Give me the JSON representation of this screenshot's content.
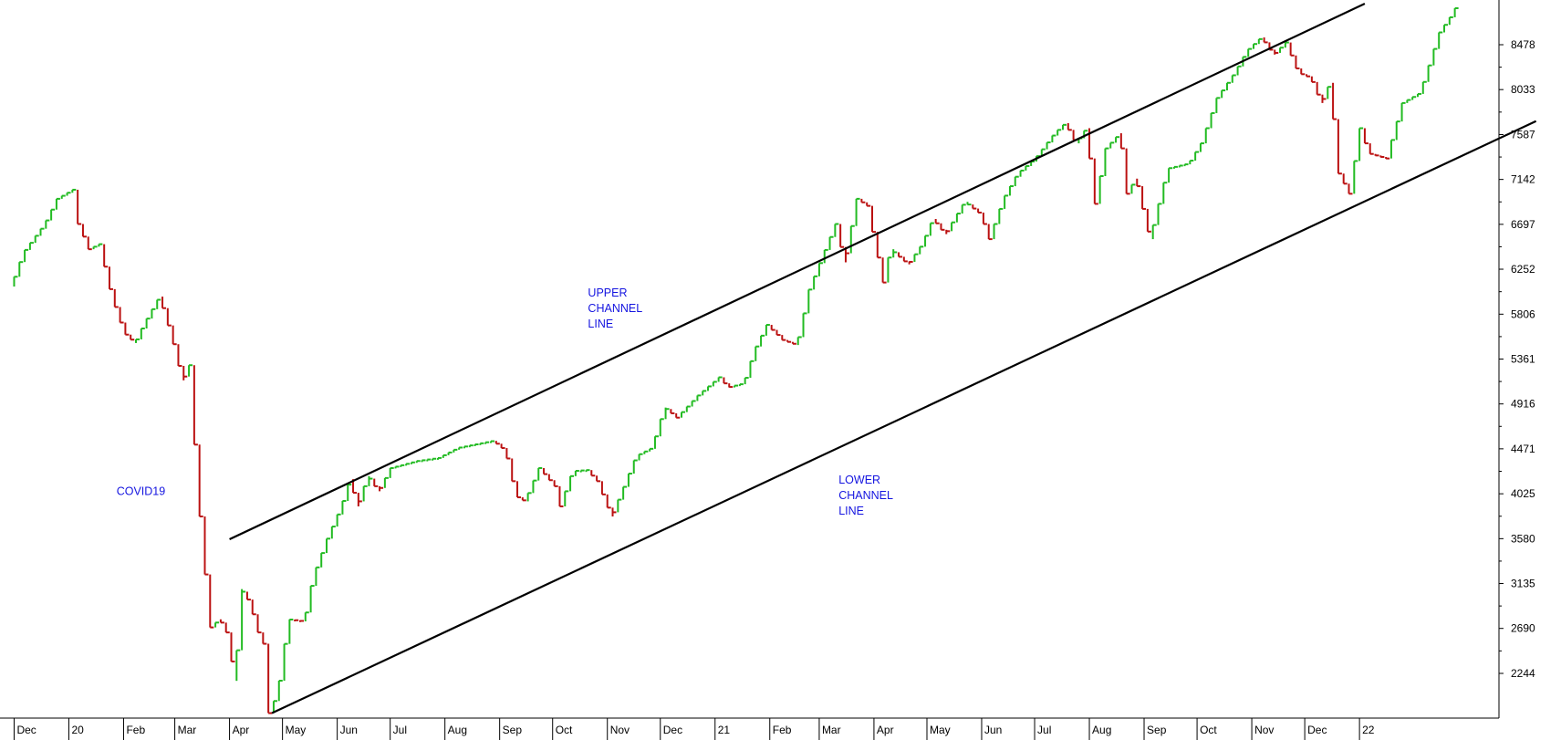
{
  "chart_data": {
    "type": "ohlc",
    "title": "",
    "xlabel": "",
    "ylabel": "",
    "ylim": [
      1800,
      8900
    ],
    "y_ticks": [
      2244,
      2690,
      3135,
      3580,
      4025,
      4471,
      4916,
      5361,
      5806,
      6252,
      6697,
      7142,
      7587,
      8033,
      8478
    ],
    "x_tick_labels": [
      "Dec",
      "20",
      "Feb",
      "Mar",
      "Apr",
      "May",
      "Jun",
      "Jul",
      "Aug",
      "Sep",
      "Oct",
      "Nov",
      "Dec",
      "21",
      "Feb",
      "Mar",
      "Apr",
      "May",
      "Jun",
      "Jul",
      "Aug",
      "Sep",
      "Oct",
      "Nov",
      "Dec",
      "22"
    ],
    "grid": false,
    "colors": {
      "up": "#22bb22",
      "down": "#bb1111",
      "annotation": "#1515e0",
      "trendline": "#000000",
      "axis": "#000000"
    },
    "price_path": [
      [
        "2019-12-01",
        6080
      ],
      [
        "2019-12-08",
        6420
      ],
      [
        "2019-12-20",
        6700
      ],
      [
        "2019-12-27",
        6950
      ],
      [
        "2020-01-05",
        7040
      ],
      [
        "2020-01-08",
        6700
      ],
      [
        "2020-01-14",
        6450
      ],
      [
        "2020-01-20",
        6500
      ],
      [
        "2020-01-27",
        5980
      ],
      [
        "2020-02-03",
        5620
      ],
      [
        "2020-02-09",
        5520
      ],
      [
        "2020-02-14",
        5700
      ],
      [
        "2020-02-23",
        5980
      ],
      [
        "2020-03-01",
        5580
      ],
      [
        "2020-03-07",
        5150
      ],
      [
        "2020-03-11",
        5300
      ],
      [
        "2020-03-15",
        4250
      ],
      [
        "2020-03-17",
        3800
      ],
      [
        "2020-03-19",
        3400
      ],
      [
        "2020-03-23",
        2700
      ],
      [
        "2020-03-28",
        2780
      ],
      [
        "2020-04-01",
        2650
      ],
      [
        "2020-04-06",
        2170
      ],
      [
        "2020-04-09",
        3080
      ],
      [
        "2020-04-14",
        2950
      ],
      [
        "2020-04-19",
        2650
      ],
      [
        "2020-04-23",
        2500
      ],
      [
        "2020-04-25",
        1850
      ],
      [
        "2020-04-30",
        2050
      ],
      [
        "2020-05-06",
        2780
      ],
      [
        "2020-05-15",
        2760
      ],
      [
        "2020-05-20",
        3200
      ],
      [
        "2020-05-28",
        3580
      ],
      [
        "2020-06-05",
        3900
      ],
      [
        "2020-06-10",
        4170
      ],
      [
        "2020-06-14",
        3900
      ],
      [
        "2020-06-20",
        4200
      ],
      [
        "2020-06-26",
        4050
      ],
      [
        "2020-07-03",
        4280
      ],
      [
        "2020-07-18",
        4350
      ],
      [
        "2020-07-30",
        4380
      ],
      [
        "2020-08-10",
        4480
      ],
      [
        "2020-08-30",
        4550
      ],
      [
        "2020-09-06",
        4450
      ],
      [
        "2020-09-12",
        4000
      ],
      [
        "2020-09-17",
        3950
      ],
      [
        "2020-09-25",
        4280
      ],
      [
        "2020-10-04",
        4100
      ],
      [
        "2020-10-07",
        3900
      ],
      [
        "2020-10-14",
        4250
      ],
      [
        "2020-10-22",
        4260
      ],
      [
        "2020-10-28",
        4150
      ],
      [
        "2020-11-05",
        3800
      ],
      [
        "2020-11-11",
        4050
      ],
      [
        "2020-11-19",
        4400
      ],
      [
        "2020-11-28",
        4480
      ],
      [
        "2020-12-05",
        4880
      ],
      [
        "2020-12-12",
        4780
      ],
      [
        "2020-12-24",
        5000
      ],
      [
        "2021-01-05",
        5180
      ],
      [
        "2021-01-10",
        5080
      ],
      [
        "2021-01-19",
        5120
      ],
      [
        "2021-01-25",
        5450
      ],
      [
        "2021-02-01",
        5700
      ],
      [
        "2021-02-10",
        5550
      ],
      [
        "2021-02-18",
        5500
      ],
      [
        "2021-02-25",
        6050
      ],
      [
        "2021-03-05",
        6400
      ],
      [
        "2021-03-12",
        6700
      ],
      [
        "2021-03-17",
        6320
      ],
      [
        "2021-03-24",
        6950
      ],
      [
        "2021-03-30",
        6880
      ],
      [
        "2021-04-04",
        6450
      ],
      [
        "2021-04-08",
        6120
      ],
      [
        "2021-04-12",
        6450
      ],
      [
        "2021-04-22",
        6300
      ],
      [
        "2021-04-30",
        6500
      ],
      [
        "2021-05-06",
        6750
      ],
      [
        "2021-05-13",
        6600
      ],
      [
        "2021-05-24",
        6920
      ],
      [
        "2021-06-02",
        6800
      ],
      [
        "2021-06-07",
        6550
      ],
      [
        "2021-06-15",
        6950
      ],
      [
        "2021-06-23",
        7200
      ],
      [
        "2021-07-03",
        7350
      ],
      [
        "2021-07-14",
        7600
      ],
      [
        "2021-07-20",
        7700
      ],
      [
        "2021-07-26",
        7500
      ],
      [
        "2021-08-01",
        7650
      ],
      [
        "2021-08-06",
        6900
      ],
      [
        "2021-08-12",
        7450
      ],
      [
        "2021-08-20",
        7600
      ],
      [
        "2021-08-24",
        7000
      ],
      [
        "2021-08-29",
        7150
      ],
      [
        "2021-09-06",
        6550
      ],
      [
        "2021-09-16",
        7250
      ],
      [
        "2021-09-28",
        7300
      ],
      [
        "2021-10-05",
        7500
      ],
      [
        "2021-10-14",
        7950
      ],
      [
        "2021-10-24",
        8200
      ],
      [
        "2021-10-31",
        8420
      ],
      [
        "2021-11-08",
        8550
      ],
      [
        "2021-11-15",
        8380
      ],
      [
        "2021-11-22",
        8500
      ],
      [
        "2021-11-29",
        8200
      ],
      [
        "2021-12-06",
        8150
      ],
      [
        "2021-12-12",
        7900
      ],
      [
        "2021-12-17",
        8100
      ],
      [
        "2021-12-22",
        7200
      ],
      [
        "2021-12-28",
        7000
      ],
      [
        "2022-01-03",
        7650
      ],
      [
        "2022-01-08",
        7400
      ],
      [
        "2022-01-18",
        7350
      ],
      [
        "2022-01-27",
        7900
      ],
      [
        "2022-02-06",
        8000
      ],
      [
        "2022-02-17",
        8600
      ],
      [
        "2022-02-23",
        8750
      ],
      [
        "2022-02-28",
        8900
      ]
    ],
    "trendlines": [
      {
        "x": [
          "2020-04-01",
          "2022-01-04"
        ],
        "y": [
          3574,
          8885
        ]
      },
      {
        "x": [
          "2020-04-25",
          "2022-04-11"
        ],
        "y": [
          1850,
          7720
        ]
      }
    ],
    "annotations": [
      {
        "lines": [
          "COVID19"
        ],
        "x": "2020-01-28",
        "y": 4013
      },
      {
        "lines": [
          "UPPER",
          "CHANNEL",
          "LINE"
        ],
        "x": "2020-10-21",
        "y": 5982
      },
      {
        "lines": [
          "LOWER",
          "CHANNEL",
          "LINE"
        ],
        "x": "2021-03-12",
        "y": 4124
      }
    ]
  }
}
